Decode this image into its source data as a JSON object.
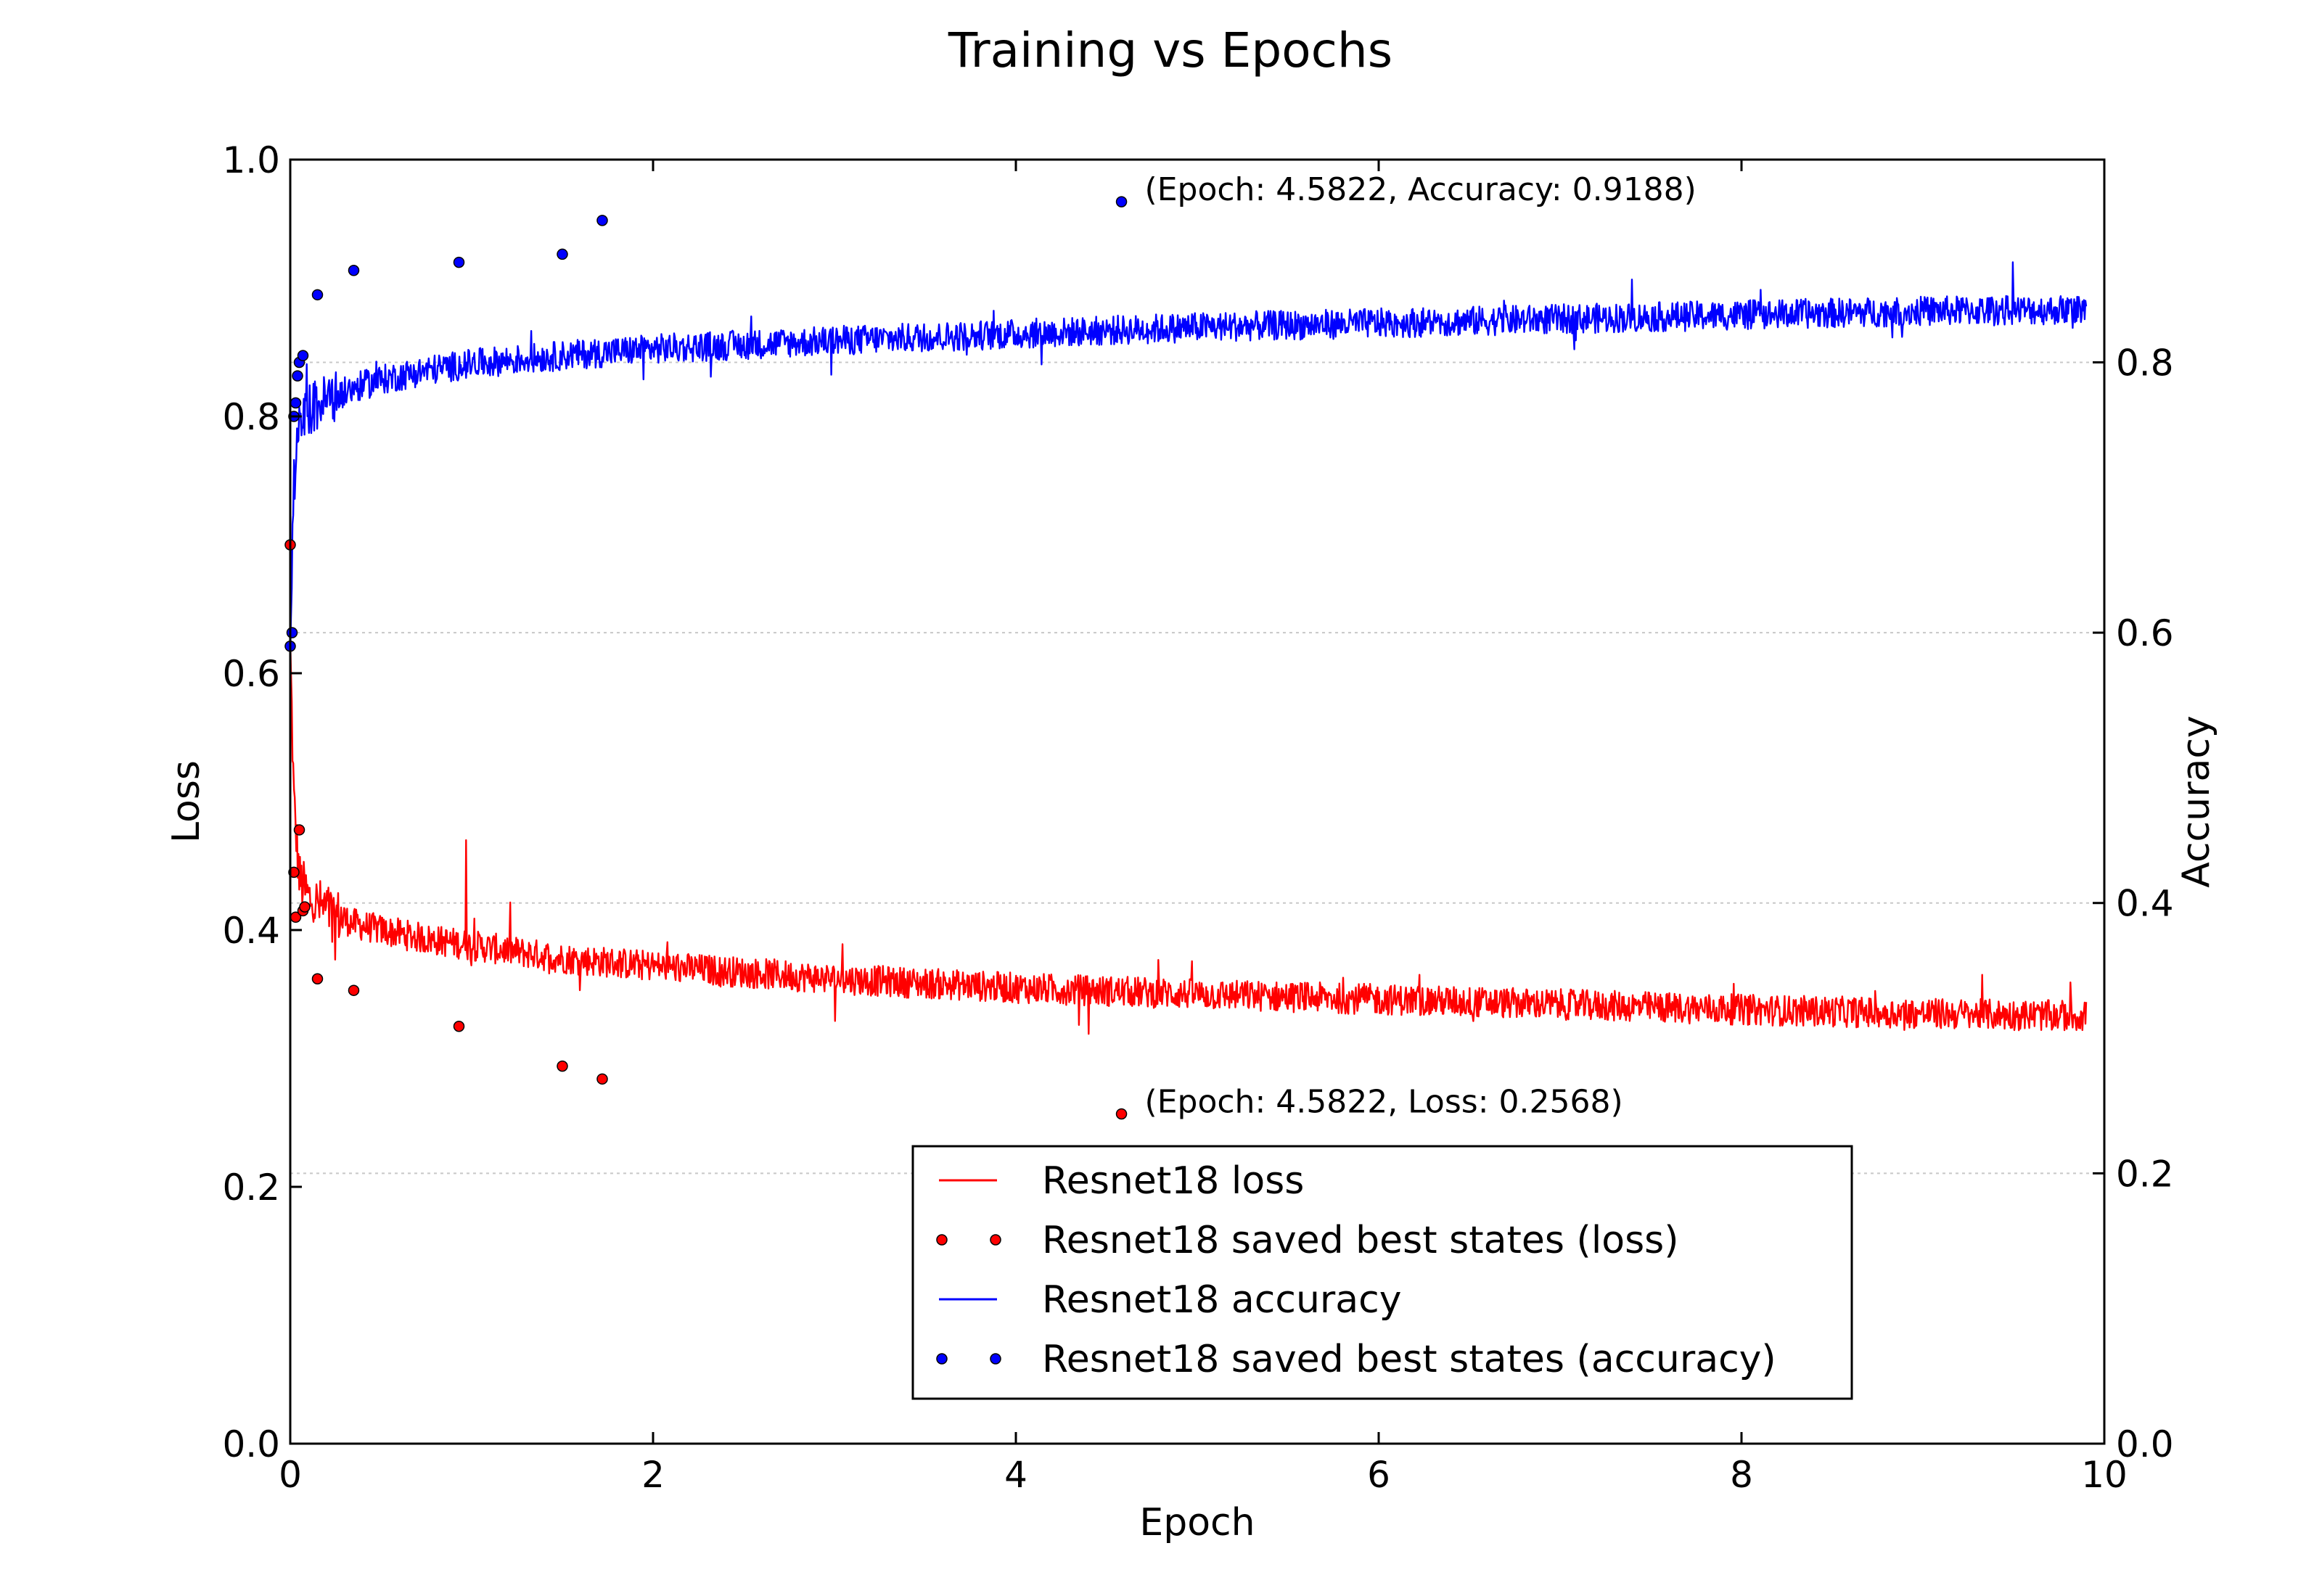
{
  "chart_data": {
    "type": "line",
    "title": "Training vs Epochs",
    "xlabel": "Epoch",
    "ylabel_left": "Loss",
    "ylabel_right": "Accuracy",
    "xlim": [
      0,
      10
    ],
    "ylim_left": [
      0,
      1
    ],
    "ylim_right": [
      0,
      0.95
    ],
    "x_ticks": [
      "0",
      "2",
      "4",
      "6",
      "8",
      "10"
    ],
    "y_ticks_left": [
      "0.0",
      "0.2",
      "0.4",
      "0.6",
      "0.8",
      "1.0"
    ],
    "y_ticks_right": [
      "0.0",
      "0.2",
      "0.4",
      "0.6",
      "0.8"
    ],
    "grid": "horizontal dashed at right-axis ticks",
    "legend_position": "lower-center",
    "series": [
      {
        "name": "Resnet18 loss",
        "axis": "left",
        "kind": "line",
        "color": "#ff0000",
        "trend": {
          "x": [
            0,
            0.02,
            0.05,
            0.1,
            0.2,
            0.35,
            0.5,
            0.75,
            1.0,
            1.5,
            2.0,
            3.0,
            4.0,
            5.0,
            6.0,
            7.0,
            8.0,
            9.0,
            9.9
          ],
          "y": [
            0.62,
            0.5,
            0.44,
            0.425,
            0.415,
            0.405,
            0.4,
            0.393,
            0.388,
            0.378,
            0.372,
            0.362,
            0.355,
            0.35,
            0.346,
            0.342,
            0.338,
            0.335,
            0.333
          ]
        },
        "noise_amplitude": 0.012,
        "spikes": [
          {
            "x": 0.97,
            "y": 0.47
          }
        ]
      },
      {
        "name": "Resnet18 saved best states (loss)",
        "axis": "left",
        "kind": "points",
        "color": "#ff0000",
        "x": [
          0.0,
          0.02,
          0.03,
          0.05,
          0.07,
          0.08,
          0.15,
          0.35,
          0.93,
          1.5,
          1.72,
          4.5822
        ],
        "y": [
          0.7,
          0.445,
          0.41,
          0.478,
          0.415,
          0.418,
          0.362,
          0.353,
          0.325,
          0.294,
          0.284,
          0.2568
        ]
      },
      {
        "name": "Resnet18 accuracy",
        "axis": "right",
        "kind": "line",
        "color": "#0000ff",
        "trend": {
          "x": [
            0,
            0.02,
            0.05,
            0.1,
            0.2,
            0.35,
            0.5,
            0.75,
            1.0,
            1.5,
            2.0,
            3.0,
            4.0,
            5.0,
            6.0,
            7.0,
            8.0,
            9.0,
            9.9
          ],
          "y": [
            0.6,
            0.71,
            0.75,
            0.765,
            0.772,
            0.781,
            0.787,
            0.794,
            0.799,
            0.805,
            0.81,
            0.816,
            0.821,
            0.826,
            0.829,
            0.832,
            0.835,
            0.838,
            0.839
          ]
        },
        "noise_amplitude": 0.011
      },
      {
        "name": "Resnet18 saved best states (accuracy)",
        "axis": "right",
        "kind": "points",
        "color": "#0000ff",
        "x": [
          0.0,
          0.01,
          0.02,
          0.03,
          0.04,
          0.05,
          0.07,
          0.15,
          0.35,
          0.93,
          1.5,
          1.72,
          4.5822
        ],
        "y": [
          0.59,
          0.6,
          0.76,
          0.77,
          0.79,
          0.8,
          0.805,
          0.85,
          0.868,
          0.874,
          0.88,
          0.905,
          0.9188
        ]
      }
    ],
    "annotations": [
      {
        "text": "(Epoch: 4.5822, Accuracy: 0.9188)",
        "x": 4.5822,
        "y": 0.9188,
        "axis": "right"
      },
      {
        "text": "(Epoch: 4.5822, Loss: 0.2568)",
        "x": 4.5822,
        "y": 0.2568,
        "axis": "left"
      }
    ]
  }
}
